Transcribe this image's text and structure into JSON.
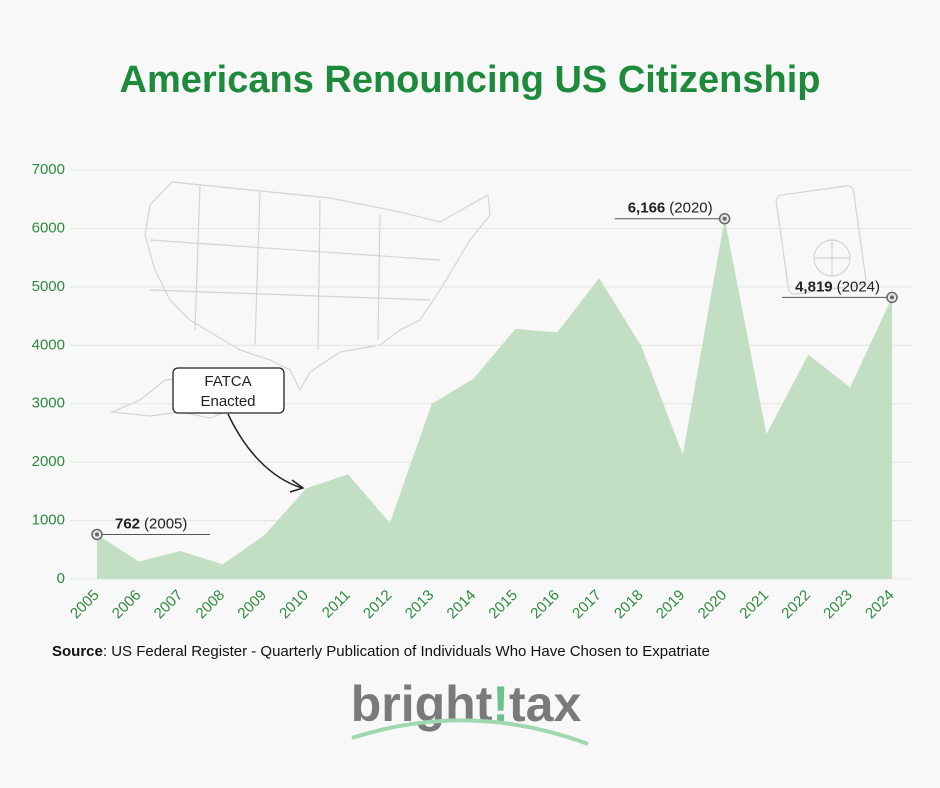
{
  "chart_data": {
    "type": "area",
    "title": "Americans Renouncing US Citizenship",
    "categories": [
      "2005",
      "2006",
      "2007",
      "2008",
      "2009",
      "2010",
      "2011",
      "2012",
      "2013",
      "2014",
      "2015",
      "2016",
      "2017",
      "2018",
      "2019",
      "2020",
      "2021",
      "2022",
      "2023",
      "2024"
    ],
    "values": [
      762,
      300,
      480,
      250,
      750,
      1550,
      1790,
      960,
      3000,
      3430,
      4280,
      4220,
      5150,
      4000,
      2130,
      6166,
      2480,
      3840,
      3280,
      4819
    ],
    "color": "#c3dfc3",
    "ylim": [
      0,
      7000
    ],
    "yticks": [
      0,
      1000,
      2000,
      3000,
      4000,
      5000,
      6000,
      7000
    ],
    "grid": true,
    "annotations": [
      {
        "x": "2005",
        "text": "762",
        "year": "(2005)"
      },
      {
        "x": "2020",
        "text": "6,166",
        "year": "(2020)"
      },
      {
        "x": "2024",
        "text": "4,819",
        "year": "(2024)"
      }
    ],
    "callout": {
      "lines": [
        "FATCA",
        "Enacted"
      ]
    },
    "source": {
      "label": "Source",
      "text": ": US Federal Register - Quarterly Publication of Individuals Who Have Chosen to Expatriate"
    },
    "logo": [
      "bright",
      "!",
      "tax"
    ]
  }
}
